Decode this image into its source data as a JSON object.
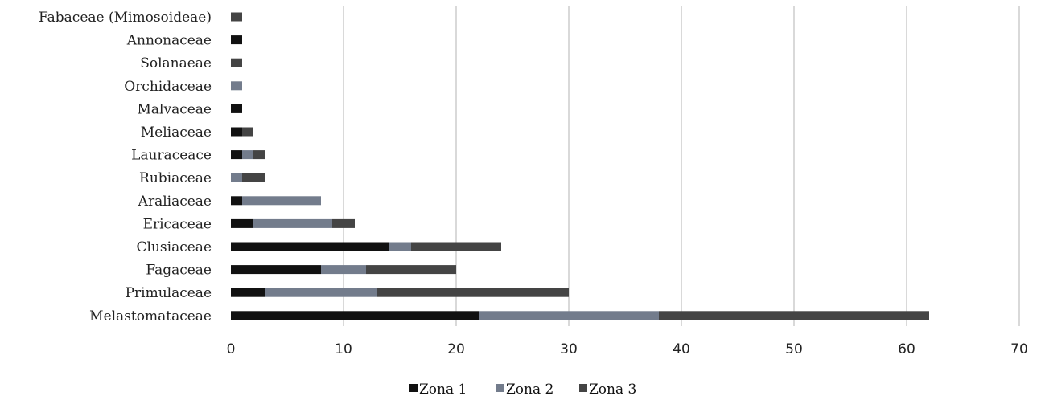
{
  "chart_data": {
    "type": "bar",
    "orientation": "horizontal",
    "stacked": true,
    "categories": [
      "Fabaceae (Mimosoideae)",
      "Annonaceae",
      "Solanaeae",
      "Orchidaceae",
      "Malvaceae",
      "Meliaceae",
      "Lauraceace",
      "Rubiaceae",
      "Araliaceae",
      "Ericaceae",
      "Clusiaceae",
      "Fagaceae",
      "Primulaceae",
      "Melastomataceae"
    ],
    "series": [
      {
        "name": "Zona 1",
        "color": "#111111",
        "values": [
          0,
          1,
          0,
          0,
          1,
          1,
          1,
          0,
          1,
          2,
          14,
          8,
          3,
          22
        ]
      },
      {
        "name": "Zona 2",
        "color": "#737c8c",
        "values": [
          0,
          0,
          0,
          1,
          0,
          0,
          1,
          1,
          7,
          7,
          2,
          4,
          10,
          16
        ]
      },
      {
        "name": "Zona 3",
        "color": "#444444",
        "values": [
          1,
          0,
          1,
          0,
          0,
          1,
          1,
          2,
          0,
          2,
          8,
          8,
          17,
          24
        ]
      }
    ],
    "xlim": [
      0,
      70
    ],
    "xticks": [
      "0",
      "10",
      "20",
      "30",
      "40",
      "50",
      "60",
      "70"
    ],
    "grid": true,
    "legend_position": "bottom",
    "title": "",
    "xlabel": "",
    "ylabel": ""
  }
}
